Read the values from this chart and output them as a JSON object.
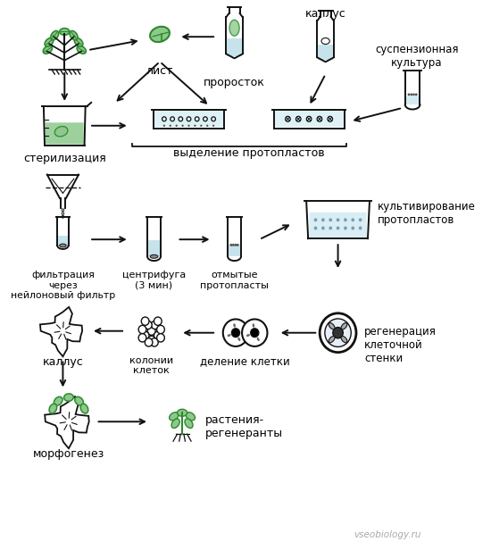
{
  "background_color": "#ffffff",
  "watermark": "vseobiology.ru",
  "labels": {
    "kallus_top": "каллус",
    "list": "лист",
    "prorostok": "проросток",
    "suspenzionnaya": "суспензионная\nкультура",
    "sterilizaciya": "стерилизация",
    "vydelenie": "выделение протопластов",
    "filtratsiya": "фильтрация\nчерез\nнейлоновый фильтр",
    "centrifuga": "центрифуга\n(3 мин)",
    "otmytye": "отмытые\nпротопласты",
    "kultivirovanie": "культивирование\nпротопластов",
    "regeneratsiya": "регенерация\nклеточной\nстенки",
    "delenie": "деление клетки",
    "kolonii": "колонии\nклеток",
    "kallus_bot": "каллус",
    "morfogenez": "морфогенез",
    "rasteniya": "растения-\nрегенеранты"
  },
  "arrow_color": "#111111",
  "line_color": "#111111",
  "green_color": "#2d8a2d",
  "light_blue": "#b8dce8",
  "light_green": "#8dc88d",
  "fill_blue": "#c8e8f0"
}
